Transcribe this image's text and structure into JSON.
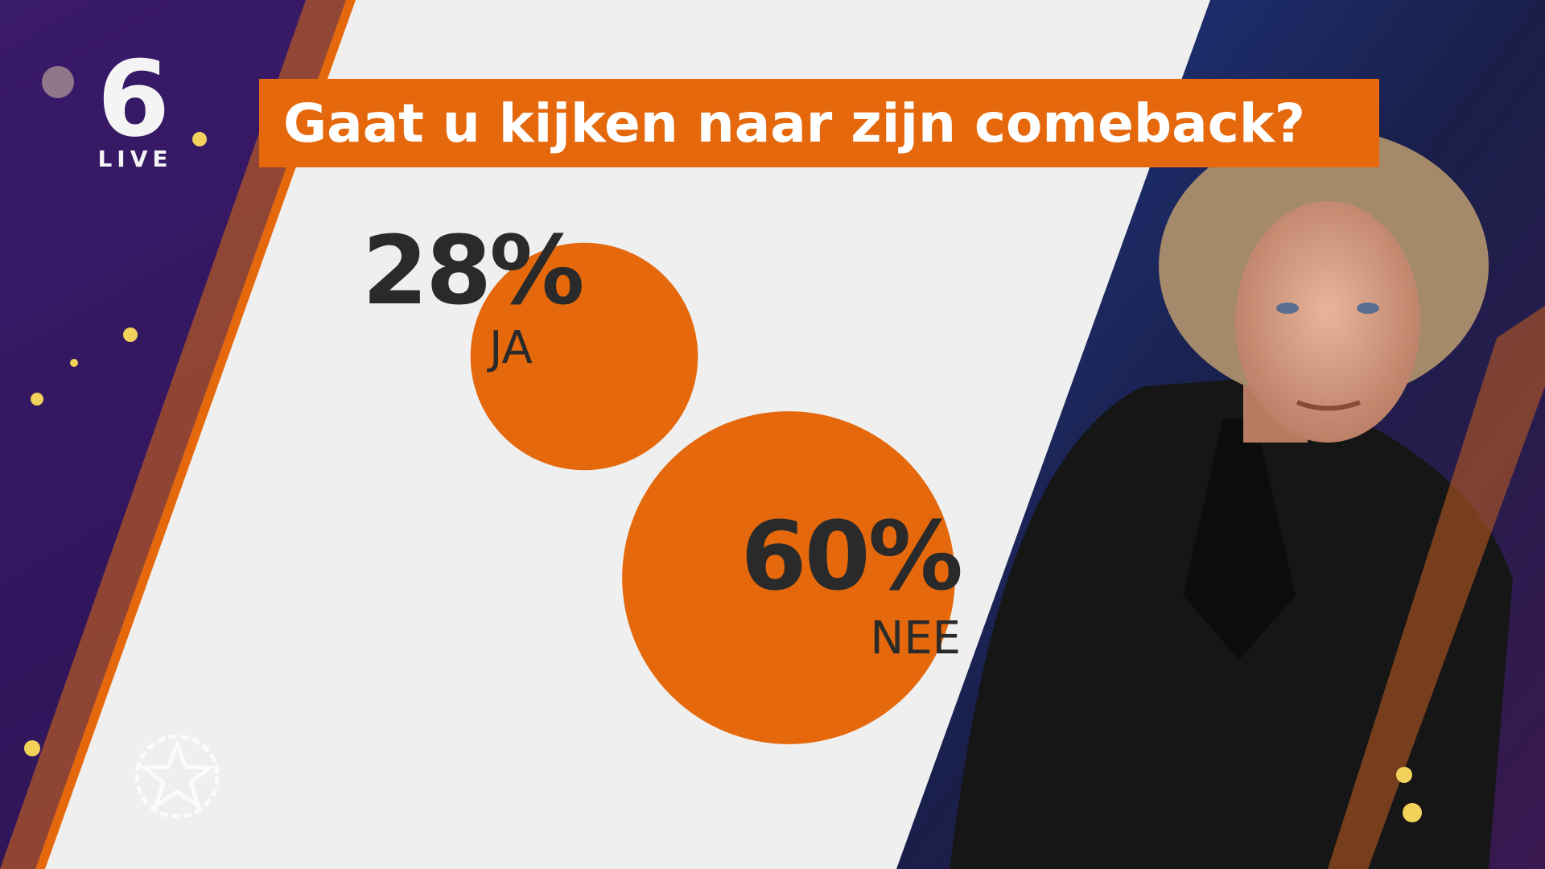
{
  "logo": {
    "channel": "6",
    "label": "LIVE"
  },
  "chart_data": {
    "type": "bubble",
    "title": "Gaat u kijken naar zijn comeback?",
    "categories": [
      "JA",
      "NEE"
    ],
    "values": [
      28,
      60
    ],
    "value_labels": [
      "28%",
      "60%"
    ],
    "color": "#e5690c"
  }
}
